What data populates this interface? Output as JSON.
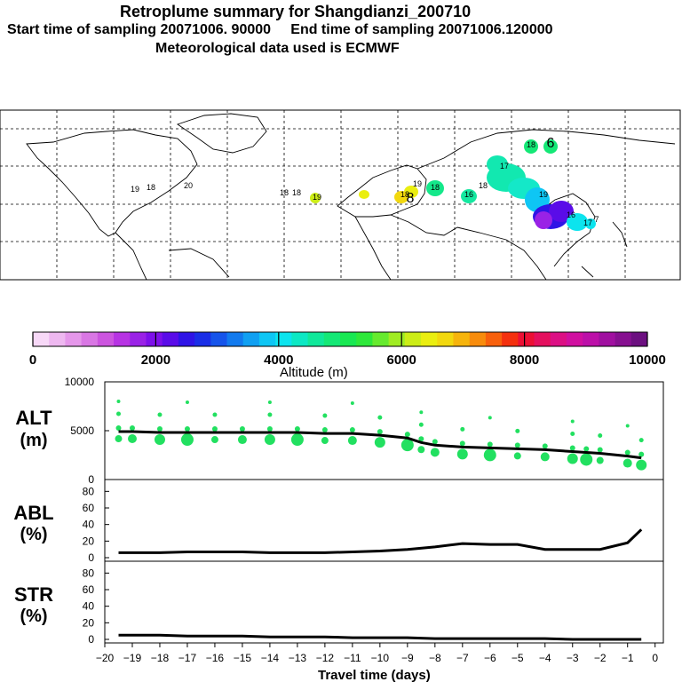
{
  "header": {
    "title": "Retroplume summary for Shangdianzi_200710",
    "line2": "Start time of sampling 20071006. 90000     End time of sampling 20071006.120000",
    "line3": "Meteorological data used is ECMWF"
  },
  "colorbar": {
    "label": "Altitude (m)",
    "ticks": [
      "0",
      "2000",
      "4000",
      "6000",
      "8000",
      "10000"
    ],
    "colors": [
      "#f7d8f7",
      "#eeb8f0",
      "#e597ea",
      "#d977e4",
      "#cc55df",
      "#b733e3",
      "#9a22e6",
      "#7d10ea",
      "#5a0ce8",
      "#2f14e6",
      "#1a2ee6",
      "#1654ea",
      "#127aee",
      "#10a0f2",
      "#0ec6f4",
      "#0ce4ee",
      "#0ce8c4",
      "#10e89a",
      "#14e876",
      "#18e852",
      "#2ee83a",
      "#66ea2e",
      "#a0ec22",
      "#cced16",
      "#eaee10",
      "#f2d80e",
      "#f6b40c",
      "#f88c0c",
      "#f8600c",
      "#f4300e",
      "#ec1034",
      "#e4105e",
      "#dc1084",
      "#d010a0",
      "#bc10a8",
      "#a010a0",
      "#861090",
      "#6c1080"
    ]
  },
  "map": {
    "labels": [
      "19",
      "18",
      "20",
      "18",
      "18",
      "19",
      "19",
      "18",
      "18",
      "16",
      "17",
      "19",
      "18",
      "6",
      "8",
      "18",
      "17",
      "16",
      "7"
    ]
  },
  "chart_data": [
    {
      "type": "line",
      "panel": "ALT",
      "ylabel": "ALT",
      "yunit": "(m)",
      "ylim": [
        0,
        10000
      ],
      "yticks": [
        "10000",
        "5000",
        "0"
      ],
      "x": [
        -19.5,
        -19,
        -18,
        -17,
        -16,
        -15,
        -14,
        -13,
        -12,
        -11,
        -10,
        -9,
        -8.5,
        -8,
        -7,
        -6,
        -5,
        -4,
        -3,
        -2.5,
        -2,
        -1,
        -0.5
      ],
      "values": [
        4900,
        4900,
        4800,
        4800,
        4800,
        4800,
        4800,
        4800,
        4700,
        4700,
        4500,
        4200,
        3700,
        3400,
        3200,
        3100,
        3000,
        2900,
        2700,
        2600,
        2500,
        2200,
        2000
      ],
      "color": "#000000",
      "points_color": "#22e060"
    },
    {
      "type": "line",
      "panel": "ABL",
      "ylabel": "ABL",
      "yunit": "(%)",
      "ylim": [
        0,
        90
      ],
      "yticks": [
        "80",
        "60",
        "40",
        "20",
        "0"
      ],
      "x": [
        -19.5,
        -18,
        -17,
        -16,
        -15,
        -14,
        -13,
        -12,
        -11,
        -10,
        -9,
        -8,
        -7,
        -6,
        -5,
        -4,
        -3,
        -2,
        -1,
        -0.5
      ],
      "values": [
        6,
        6,
        7,
        7,
        7,
        6,
        6,
        6,
        7,
        8,
        10,
        13,
        17,
        16,
        16,
        10,
        10,
        10,
        18,
        34
      ],
      "color": "#000000"
    },
    {
      "type": "line",
      "panel": "STR",
      "ylabel": "STR",
      "yunit": "(%)",
      "ylim": [
        0,
        90
      ],
      "yticks": [
        "80",
        "60",
        "40",
        "20",
        "0"
      ],
      "x": [
        -19.5,
        -18,
        -17,
        -16,
        -15,
        -14,
        -13,
        -12,
        -11,
        -10,
        -9,
        -8,
        -7,
        -6,
        -5,
        -4,
        -3,
        -2,
        -1,
        -0.5
      ],
      "values": [
        5,
        5,
        4,
        4,
        4,
        3,
        3,
        3,
        2,
        2,
        2,
        1,
        1,
        1,
        1,
        1,
        0,
        0,
        0,
        0
      ],
      "color": "#000000"
    }
  ],
  "xaxis": {
    "label": "Travel time (days)",
    "ticks": [
      "−20",
      "−19",
      "−18",
      "−17",
      "−16",
      "−15",
      "−14",
      "−13",
      "−12",
      "−11",
      "−10",
      "−9",
      "−8",
      "−7",
      "−6",
      "−5",
      "−4",
      "−3",
      "−2",
      "−1",
      "0"
    ]
  }
}
